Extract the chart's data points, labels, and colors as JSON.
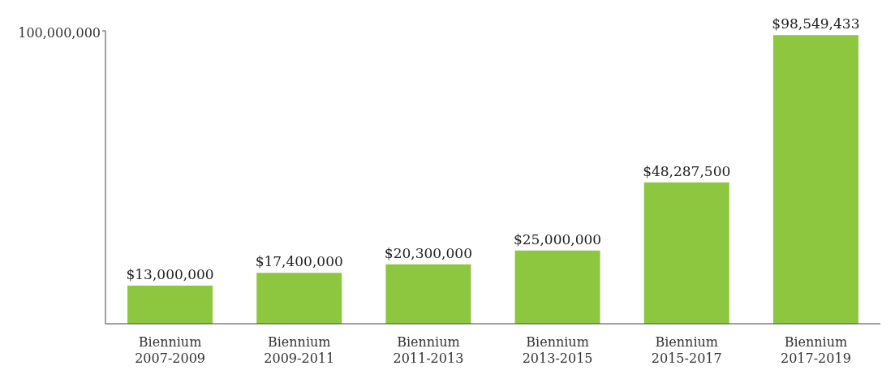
{
  "chart_data": {
    "type": "bar",
    "categories": [
      "Biennium 2007-2009",
      "Biennium 2009-2011",
      "Biennium 2011-2013",
      "Biennium 2013-2015",
      "Biennium 2015-2017",
      "Biennium 2017-2019"
    ],
    "values": [
      13000000,
      17400000,
      20300000,
      25000000,
      48287500,
      98549433
    ],
    "value_labels": [
      "$13,000,000",
      "$17,400,000",
      "$20,300,000",
      "$25,000,000",
      "$48,287,500",
      "$98,549,433"
    ],
    "color": "#8dc63f",
    "ylim": [
      0,
      100000000
    ],
    "yticks": [
      {
        "value": 100000000,
        "label": "100,000,000"
      }
    ],
    "grid": false,
    "legend": false
  }
}
